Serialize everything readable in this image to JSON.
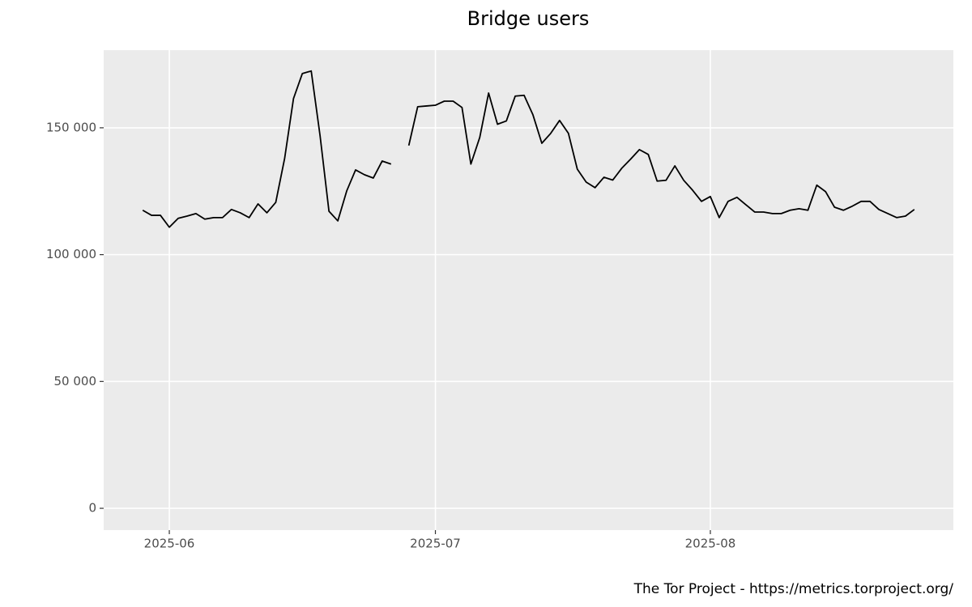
{
  "chart_data": {
    "type": "line",
    "title": "Bridge users",
    "caption": "The Tor Project - https://metrics.torproject.org/",
    "categories": [
      null,
      null,
      null,
      "2025-06",
      null,
      null,
      null,
      null,
      null,
      null,
      null,
      null,
      null,
      null,
      null,
      null,
      null,
      null,
      null,
      null,
      null,
      null,
      null,
      null,
      null,
      null,
      null,
      null,
      null,
      null,
      null,
      null,
      null,
      "2025-07",
      null,
      null,
      null,
      null,
      null,
      null,
      null,
      null,
      null,
      null,
      null,
      null,
      null,
      null,
      null,
      null,
      null,
      null,
      null,
      null,
      null,
      null,
      null,
      null,
      null,
      null,
      null,
      null,
      null,
      null,
      "2025-08",
      null,
      null,
      null,
      null,
      null,
      null,
      null,
      null,
      null,
      null,
      null,
      null,
      null,
      null,
      null,
      null,
      null,
      null,
      null,
      null,
      null,
      null,
      null
    ],
    "series": [
      {
        "color": "#000000",
        "values": [
          117500,
          115500,
          115500,
          110800,
          114300,
          115200,
          116200,
          114000,
          114600,
          114600,
          117800,
          116500,
          114600,
          120000,
          116500,
          120600,
          137900,
          161500,
          171400,
          172400,
          146800,
          117100,
          113300,
          125100,
          133400,
          131500,
          130200,
          136900,
          135700,
          null,
          143000,
          158300,
          158600,
          158900,
          160500,
          160500,
          158000,
          135700,
          146200,
          163700,
          151400,
          152700,
          162500,
          162800,
          155100,
          143900,
          147800,
          152900,
          147800,
          133700,
          128600,
          126400,
          130500,
          129400,
          134000,
          137600,
          141400,
          139500,
          129000,
          129300,
          135000,
          129300,
          125400,
          121000,
          122900,
          114600,
          121000,
          122600,
          119700,
          116800,
          116800,
          116200,
          116200,
          117500,
          118100,
          117500,
          127400,
          124800,
          118700,
          117500,
          119100,
          121000,
          121000,
          117800,
          116200,
          114600,
          115200,
          117800
        ]
      }
    ],
    "ylim": [
      -8600,
      180600
    ],
    "yticks": [
      0,
      {
        "value": 50000,
        "label": "50 000"
      },
      {
        "value": 100000,
        "label": "100 000"
      },
      {
        "value": 150000,
        "label": "150 000"
      }
    ],
    "grid": true
  }
}
